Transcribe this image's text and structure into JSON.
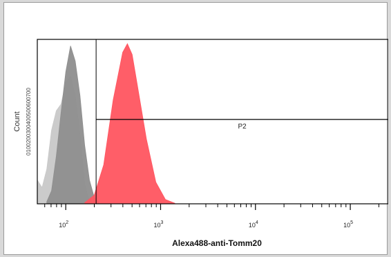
{
  "chart_data": {
    "type": "area",
    "title": "",
    "xlabel": "Alexa488-anti-Tomm20",
    "ylabel": "Count",
    "ytick_run": "0100200300400500600700",
    "x_scale": "log",
    "xlim": [
      1.7,
      5.4
    ],
    "ylim": [
      0,
      760
    ],
    "x_ticks": [
      {
        "exp": 2,
        "base": "10",
        "sup": "2"
      },
      {
        "exp": 3,
        "base": "10",
        "sup": "3"
      },
      {
        "exp": 4,
        "base": "10",
        "sup": "4"
      },
      {
        "exp": 5,
        "base": "10",
        "sup": "5"
      }
    ],
    "series": [
      {
        "color": "#c8c8c8",
        "x": [
          1.7,
          1.75,
          1.8,
          1.85,
          1.9,
          1.95,
          2.0,
          2.05,
          2.1,
          2.15,
          2.2,
          2.25
        ],
        "y": [
          110,
          75,
          160,
          340,
          430,
          460,
          560,
          590,
          500,
          320,
          90,
          10
        ]
      },
      {
        "color": "#8e8e8e",
        "x": [
          1.8,
          1.85,
          1.9,
          1.95,
          2.0,
          2.05,
          2.1,
          2.15,
          2.2,
          2.25,
          2.3,
          2.35
        ],
        "y": [
          10,
          60,
          220,
          420,
          610,
          730,
          660,
          500,
          270,
          110,
          30,
          5
        ]
      },
      {
        "color": "#ff5560",
        "x": [
          2.2,
          2.3,
          2.4,
          2.5,
          2.6,
          2.65,
          2.7,
          2.75,
          2.85,
          2.95,
          3.05,
          3.15
        ],
        "y": [
          5,
          40,
          180,
          480,
          700,
          740,
          690,
          560,
          300,
          100,
          20,
          3
        ]
      }
    ],
    "gate": {
      "label": "P2",
      "x_start": 2.32,
      "x_end": 5.4,
      "y": 390
    }
  }
}
